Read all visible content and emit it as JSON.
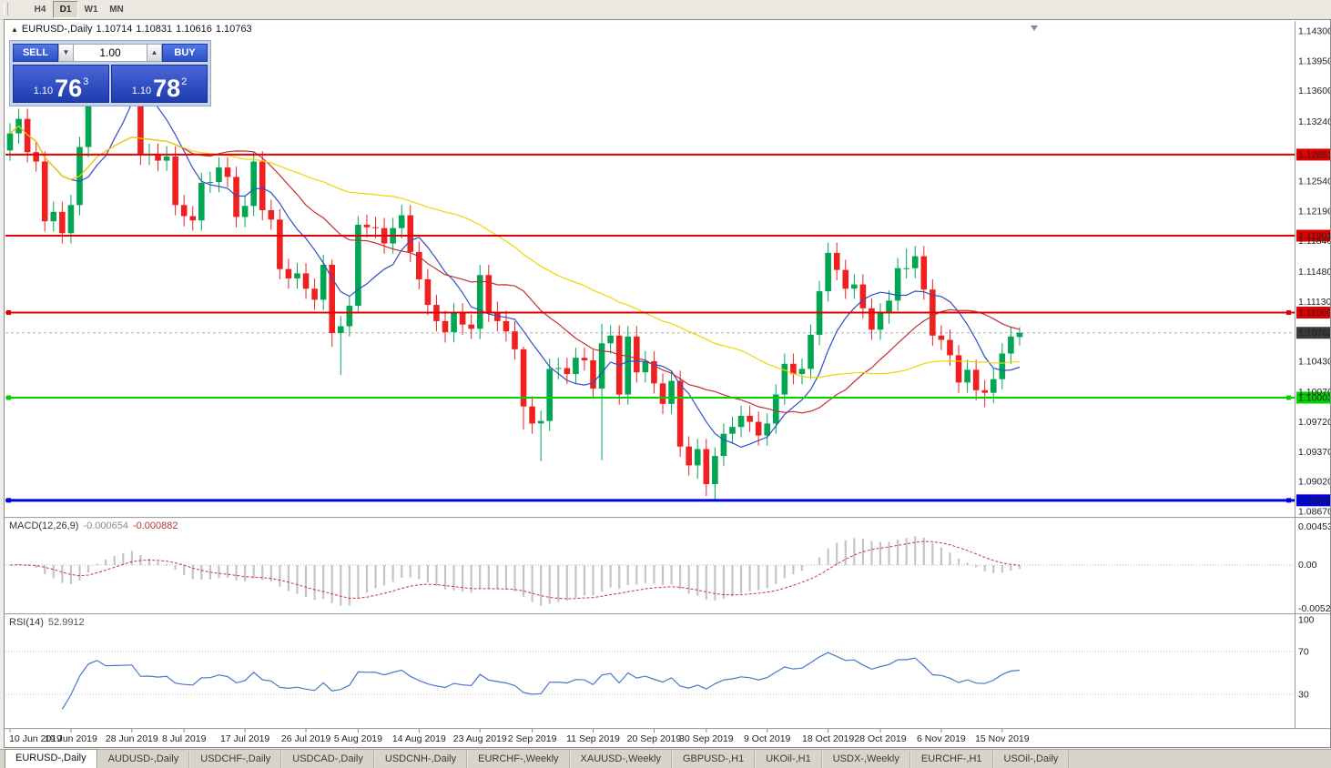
{
  "toolbar": {
    "buttons": [
      {
        "label": "H4",
        "active": false
      },
      {
        "label": "D1",
        "active": true
      },
      {
        "label": "W1",
        "active": false
      },
      {
        "label": "MN",
        "active": false
      }
    ]
  },
  "header": {
    "symbol_label": "EURUSD-,Daily",
    "open": "1.10714",
    "high": "1.10831",
    "low": "1.10616",
    "close": "1.10763"
  },
  "trade_panel": {
    "sell_label": "SELL",
    "buy_label": "BUY",
    "volume": "1.00",
    "bid": {
      "small": "1.10",
      "big": "76",
      "sup": "3"
    },
    "ask": {
      "small": "1.10",
      "big": "78",
      "sup": "2"
    }
  },
  "chart_data": {
    "type": "candlestick",
    "symbol": "EURUSD-",
    "timeframe": "Daily",
    "candle_up": "#00a652",
    "candle_down": "#f02020",
    "price_range": {
      "top": 1.14375,
      "bottom": 1.08617
    },
    "candles": [
      [
        1.129,
        1.1322,
        1.1278,
        1.131
      ],
      [
        1.131,
        1.1339,
        1.1298,
        1.1327
      ],
      [
        1.1327,
        1.1339,
        1.1276,
        1.1288
      ],
      [
        1.1288,
        1.13,
        1.1265,
        1.1277
      ],
      [
        1.1277,
        1.1289,
        1.1195,
        1.1207
      ],
      [
        1.1207,
        1.123,
        1.1195,
        1.1218
      ],
      [
        1.1218,
        1.123,
        1.1181,
        1.1193
      ],
      [
        1.1193,
        1.1238,
        1.1181,
        1.1226
      ],
      [
        1.1226,
        1.1306,
        1.1214,
        1.1294
      ],
      [
        1.1294,
        1.138,
        1.1282,
        1.1368
      ],
      [
        1.1368,
        1.1411,
        1.1356,
        1.1399
      ],
      [
        1.1399,
        1.1411,
        1.1353,
        1.1365
      ],
      [
        1.1365,
        1.138,
        1.1353,
        1.1368
      ],
      [
        1.1368,
        1.1381,
        1.1356,
        1.1369
      ],
      [
        1.1369,
        1.1385,
        1.1357,
        1.1373
      ],
      [
        1.1373,
        1.1385,
        1.1273,
        1.1285
      ],
      [
        1.1285,
        1.1298,
        1.1273,
        1.1286
      ],
      [
        1.1286,
        1.1298,
        1.1266,
        1.1278
      ],
      [
        1.1278,
        1.1295,
        1.1266,
        1.1283
      ],
      [
        1.1283,
        1.1295,
        1.1214,
        1.1226
      ],
      [
        1.1226,
        1.1238,
        1.1201,
        1.1213
      ],
      [
        1.1213,
        1.1225,
        1.1196,
        1.1208
      ],
      [
        1.1208,
        1.1264,
        1.1196,
        1.1252
      ],
      [
        1.1252,
        1.1265,
        1.124,
        1.1253
      ],
      [
        1.1253,
        1.1282,
        1.1241,
        1.127
      ],
      [
        1.127,
        1.1282,
        1.1247,
        1.1259
      ],
      [
        1.1259,
        1.1271,
        1.12,
        1.1212
      ],
      [
        1.1212,
        1.1237,
        1.12,
        1.1225
      ],
      [
        1.1225,
        1.1289,
        1.1213,
        1.1277
      ],
      [
        1.1277,
        1.1289,
        1.1208,
        1.122
      ],
      [
        1.122,
        1.1232,
        1.1197,
        1.1209
      ],
      [
        1.1209,
        1.1221,
        1.1139,
        1.1151
      ],
      [
        1.1151,
        1.1163,
        1.1128,
        1.114
      ],
      [
        1.114,
        1.1158,
        1.1128,
        1.1146
      ],
      [
        1.1146,
        1.1158,
        1.1116,
        1.1128
      ],
      [
        1.1128,
        1.114,
        1.1103,
        1.1115
      ],
      [
        1.1115,
        1.1168,
        1.1103,
        1.1156
      ],
      [
        1.1156,
        1.1162,
        1.106,
        1.1076
      ],
      [
        1.1076,
        1.1096,
        1.1027,
        1.1084
      ],
      [
        1.1084,
        1.112,
        1.1072,
        1.1108
      ],
      [
        1.1108,
        1.1213,
        1.1101,
        1.1203
      ],
      [
        1.1203,
        1.1215,
        1.1188,
        1.12
      ],
      [
        1.12,
        1.1212,
        1.1187,
        1.1199
      ],
      [
        1.1199,
        1.1211,
        1.1169,
        1.1181
      ],
      [
        1.1181,
        1.1211,
        1.1169,
        1.1199
      ],
      [
        1.1199,
        1.1226,
        1.1187,
        1.1214
      ],
      [
        1.1214,
        1.1226,
        1.1159,
        1.1171
      ],
      [
        1.1171,
        1.1183,
        1.1127,
        1.1139
      ],
      [
        1.1139,
        1.1151,
        1.1097,
        1.1109
      ],
      [
        1.1109,
        1.1121,
        1.1078,
        1.109
      ],
      [
        1.109,
        1.1102,
        1.1065,
        1.1077
      ],
      [
        1.1077,
        1.1111,
        1.1065,
        1.1099
      ],
      [
        1.1099,
        1.1111,
        1.1074,
        1.1086
      ],
      [
        1.1086,
        1.1098,
        1.1069,
        1.1081
      ],
      [
        1.1081,
        1.1156,
        1.1069,
        1.1144
      ],
      [
        1.1144,
        1.1156,
        1.1089,
        1.1101
      ],
      [
        1.1101,
        1.1113,
        1.1078,
        1.109
      ],
      [
        1.109,
        1.1102,
        1.1066,
        1.1078
      ],
      [
        1.1078,
        1.109,
        1.1045,
        1.1057
      ],
      [
        1.1057,
        1.106,
        1.0963,
        1.099
      ],
      [
        1.099,
        1.1002,
        1.0958,
        1.097
      ],
      [
        1.097,
        1.0985,
        1.0926,
        1.0973
      ],
      [
        1.0973,
        1.1046,
        1.0961,
        1.1034
      ],
      [
        1.1034,
        1.1047,
        1.1022,
        1.1035
      ],
      [
        1.1035,
        1.1047,
        1.1016,
        1.1028
      ],
      [
        1.1028,
        1.1059,
        1.1016,
        1.1047
      ],
      [
        1.1047,
        1.1059,
        1.1032,
        1.1044
      ],
      [
        1.1044,
        1.1056,
        1.0999,
        1.1011
      ],
      [
        1.1011,
        1.1087,
        1.0927,
        1.1064
      ],
      [
        1.1064,
        1.1085,
        1.1052,
        1.1073
      ],
      [
        1.1073,
        1.1085,
        1.0992,
        1.1004
      ],
      [
        1.1004,
        1.1084,
        1.0992,
        1.1072
      ],
      [
        1.1072,
        1.1084,
        1.1018,
        1.103
      ],
      [
        1.103,
        1.1055,
        1.1018,
        1.1043
      ],
      [
        1.1043,
        1.1055,
        1.1005,
        1.1017
      ],
      [
        1.1017,
        1.1029,
        1.0981,
        1.0993
      ],
      [
        1.0993,
        1.1032,
        1.0981,
        1.102
      ],
      [
        1.102,
        1.1032,
        1.0931,
        1.0943
      ],
      [
        1.0943,
        1.0955,
        1.0909,
        1.0921
      ],
      [
        1.0921,
        1.0952,
        1.0905,
        1.094
      ],
      [
        1.094,
        1.0952,
        1.0885,
        1.0899
      ],
      [
        1.0899,
        1.0942,
        1.0879,
        1.0932
      ],
      [
        1.0932,
        1.097,
        1.092,
        1.0958
      ],
      [
        1.0958,
        1.0978,
        1.0946,
        1.0966
      ],
      [
        1.0966,
        1.0991,
        1.0954,
        1.0979
      ],
      [
        1.0979,
        1.0991,
        1.096,
        1.0972
      ],
      [
        1.0972,
        1.0984,
        1.0944,
        1.0956
      ],
      [
        1.0956,
        1.0982,
        1.0944,
        1.097
      ],
      [
        1.097,
        1.1016,
        1.0958,
        1.1004
      ],
      [
        1.1004,
        1.1052,
        1.0992,
        1.104
      ],
      [
        1.104,
        1.1052,
        1.1016,
        1.1028
      ],
      [
        1.1028,
        1.1046,
        1.1016,
        1.1034
      ],
      [
        1.1034,
        1.1086,
        1.1022,
        1.1074
      ],
      [
        1.1074,
        1.1137,
        1.1062,
        1.1125
      ],
      [
        1.1125,
        1.1182,
        1.1113,
        1.117
      ],
      [
        1.117,
        1.1182,
        1.1138,
        1.115
      ],
      [
        1.115,
        1.1162,
        1.1116,
        1.1128
      ],
      [
        1.1128,
        1.1145,
        1.1116,
        1.1133
      ],
      [
        1.1133,
        1.1145,
        1.1093,
        1.1105
      ],
      [
        1.1105,
        1.1117,
        1.1068,
        1.108
      ],
      [
        1.108,
        1.1111,
        1.1068,
        1.1099
      ],
      [
        1.1099,
        1.1126,
        1.1087,
        1.1114
      ],
      [
        1.1114,
        1.1164,
        1.1102,
        1.1152
      ],
      [
        1.1152,
        1.1175,
        1.114,
        1.1152
      ],
      [
        1.1152,
        1.1178,
        1.114,
        1.1166
      ],
      [
        1.1166,
        1.1178,
        1.1115,
        1.1127
      ],
      [
        1.1127,
        1.1139,
        1.1061,
        1.1073
      ],
      [
        1.1073,
        1.1085,
        1.1056,
        1.1068
      ],
      [
        1.1068,
        1.108,
        1.1038,
        1.105
      ],
      [
        1.105,
        1.1062,
        1.1006,
        1.1018
      ],
      [
        1.1018,
        1.1045,
        1.1006,
        1.1033
      ],
      [
        1.1033,
        1.1045,
        1.0997,
        1.1009
      ],
      [
        1.1009,
        1.1021,
        1.0989,
        1.1006
      ],
      [
        1.1006,
        1.1034,
        1.0994,
        1.1022
      ],
      [
        1.1022,
        1.1064,
        1.101,
        1.1052
      ],
      [
        1.1052,
        1.1084,
        1.104,
        1.1072
      ],
      [
        1.10714,
        1.10831,
        1.10616,
        1.10763
      ]
    ],
    "date_labels": [
      [
        "10 Jun 2019",
        0
      ],
      [
        "19 Jun 2019",
        7
      ],
      [
        "28 Jun 2019",
        14
      ],
      [
        "8 Jul 2019",
        20
      ],
      [
        "17 Jul 2019",
        27
      ],
      [
        "26 Jul 2019",
        34
      ],
      [
        "5 Aug 2019",
        40
      ],
      [
        "14 Aug 2019",
        47
      ],
      [
        "23 Aug 2019",
        54
      ],
      [
        "2 Sep 2019",
        60
      ],
      [
        "11 Sep 2019",
        67
      ],
      [
        "20 Sep 2019",
        74
      ],
      [
        "30 Sep 2019",
        80
      ],
      [
        "9 Oct 2019",
        87
      ],
      [
        "18 Oct 2019",
        94
      ],
      [
        "28 Oct 2019",
        100
      ],
      [
        "6 Nov 2019",
        107
      ],
      [
        "15 Nov 2019",
        114
      ]
    ],
    "scale_labels": [
      "1.14300",
      "1.13950",
      "1.13600",
      "1.13240",
      "1.12540",
      "1.12190",
      "1.11840",
      "1.11480",
      "1.11130",
      "1.10430",
      "1.10070",
      "1.09720",
      "1.09370",
      "1.09020",
      "1.08670"
    ],
    "levels": [
      {
        "price": 1.12851,
        "color": "#e00000",
        "width": 2,
        "label": "1.12851",
        "text": "#ffffff",
        "handles": false
      },
      {
        "price": 1.11901,
        "color": "#e00000",
        "width": 2,
        "label": "1.11901",
        "text": "#ffffff",
        "handles": false
      },
      {
        "price": 1.11,
        "color": "#e00000",
        "width": 2,
        "label": "1.11000",
        "text": "#ffffff",
        "handles": true
      },
      {
        "price": 1.10003,
        "color": "#00d300",
        "width": 2,
        "label": "1.10003",
        "text": "#003300",
        "handles": true
      },
      {
        "price": 1.088,
        "color": "#0000e0",
        "width": 3,
        "label": "1.08800",
        "text": "#ffffff",
        "handles": true
      }
    ],
    "current_price": {
      "value": 1.10763,
      "label": "1.10763",
      "badge_bg": "#3a3a3a",
      "text": "#ffffff"
    },
    "ma": [
      {
        "period": 8,
        "color": "#2d4ec9"
      },
      {
        "period": 20,
        "color": "#c23036"
      },
      {
        "period": 45,
        "color": "#f2d400"
      }
    ],
    "macd": {
      "label": "MACD(12,26,9)",
      "value1": "-0.000654",
      "value2": "-0.000882",
      "fast": 12,
      "slow": 26,
      "signal": 9,
      "axis": [
        "0.004536",
        "0.00",
        "-0.005205"
      ],
      "hist_color": "#c4c4c4",
      "signal_color": "#cc3333"
    },
    "rsi": {
      "label": "RSI(14)",
      "value": "52.9912",
      "period": 14,
      "color": "#4579c5",
      "axis": [
        {
          "v": 100,
          "label": "100"
        },
        {
          "v": 70,
          "label": "70"
        },
        {
          "v": 30,
          "label": "30"
        }
      ]
    }
  },
  "tabs": [
    {
      "label": "EURUSD-,Daily",
      "active": true
    },
    {
      "label": "AUDUSD-,Daily",
      "active": false
    },
    {
      "label": "USDCHF-,Daily",
      "active": false
    },
    {
      "label": "USDCAD-,Daily",
      "active": false
    },
    {
      "label": "USDCNH-,Daily",
      "active": false
    },
    {
      "label": "EURCHF-,Weekly",
      "active": false
    },
    {
      "label": "XAUUSD-,Weekly",
      "active": false
    },
    {
      "label": "GBPUSD-,H1",
      "active": false
    },
    {
      "label": "UKOil-,H1",
      "active": false
    },
    {
      "label": "USDX-,Weekly",
      "active": false
    },
    {
      "label": "EURCHF-,H1",
      "active": false
    },
    {
      "label": "USOil-,Daily",
      "active": false
    }
  ]
}
